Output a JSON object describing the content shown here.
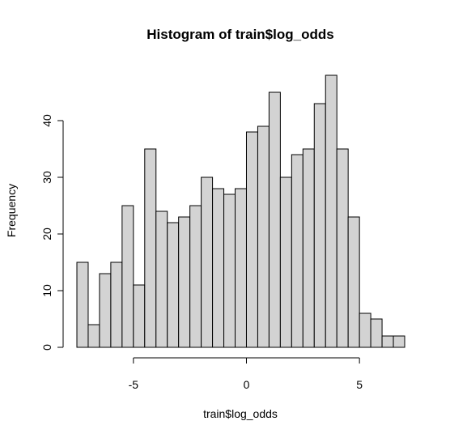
{
  "chart_data": {
    "type": "bar",
    "title": "Histogram of train$log_odds",
    "xlabel": "train$log_odds",
    "ylabel": "Frequency",
    "bin_width": 0.5,
    "bins": [
      [
        -7.5,
        -7.0
      ],
      [
        -7.0,
        -6.5
      ],
      [
        -6.5,
        -6.0
      ],
      [
        -6.0,
        -5.5
      ],
      [
        -5.5,
        -5.0
      ],
      [
        -5.0,
        -4.5
      ],
      [
        -4.5,
        -4.0
      ],
      [
        -4.0,
        -3.5
      ],
      [
        -3.5,
        -3.0
      ],
      [
        -3.0,
        -2.5
      ],
      [
        -2.5,
        -2.0
      ],
      [
        -2.0,
        -1.5
      ],
      [
        -1.5,
        -1.0
      ],
      [
        -1.0,
        -0.5
      ],
      [
        -0.5,
        0.0
      ],
      [
        0.0,
        0.5
      ],
      [
        0.5,
        1.0
      ],
      [
        1.0,
        1.5
      ],
      [
        1.5,
        2.0
      ],
      [
        2.0,
        2.5
      ],
      [
        2.5,
        3.0
      ],
      [
        3.0,
        3.5
      ],
      [
        3.5,
        4.0
      ],
      [
        4.0,
        4.5
      ],
      [
        4.5,
        5.0
      ],
      [
        5.0,
        5.5
      ],
      [
        5.5,
        6.0
      ],
      [
        6.0,
        6.5
      ],
      [
        6.5,
        7.0
      ]
    ],
    "values": [
      15,
      4,
      13,
      15,
      25,
      11,
      35,
      24,
      22,
      23,
      25,
      30,
      28,
      27,
      28,
      38,
      39,
      45,
      30,
      34,
      35,
      43,
      48,
      35,
      23,
      6,
      5,
      2,
      2
    ],
    "xlim": [
      -7.5,
      7.0
    ],
    "ylim": [
      0,
      48
    ],
    "x_ticks": [
      "-5",
      "0",
      "5"
    ],
    "y_ticks": [
      "0",
      "10",
      "20",
      "30",
      "40"
    ],
    "grid": false,
    "colors": {
      "bar_fill": "#d3d3d3",
      "bar_stroke": "#000000"
    }
  }
}
